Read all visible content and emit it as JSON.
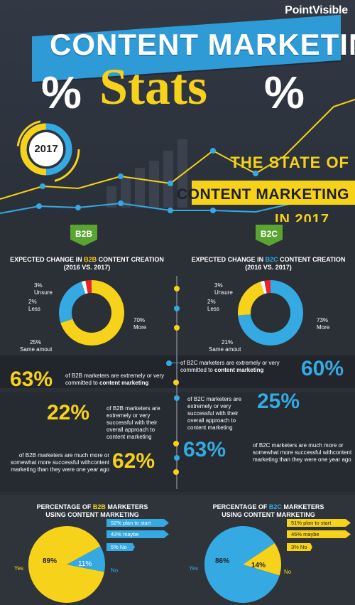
{
  "header": {
    "brand_point": "Point",
    "brand_visible": "Visible",
    "title": "CONTENT MARKETING",
    "subtitle": "Stats",
    "percent_symbol": "%",
    "year": "2017",
    "state_line1": "THE STATE OF",
    "state_line2": "CONTENT MARKETING",
    "state_line3": "IN 2017"
  },
  "b2b": {
    "badge": "B2B",
    "expected_title_pre": "EXPECTED CHANGE IN ",
    "expected_title_accent": "B2B",
    "expected_title_post": " CONTENT CREATION",
    "expected_title_years": "(2016 VS. 2017)",
    "donut": [
      {
        "label": "More",
        "value": 70,
        "pct": "70%",
        "color": "#f7d21a"
      },
      {
        "label": "Same amout",
        "value": 25,
        "pct": "25%",
        "color": "#35a9e1"
      },
      {
        "label": "Less",
        "value": 2,
        "pct": "2%",
        "color": "#ffffff"
      },
      {
        "label": "Unsure",
        "value": 3,
        "pct": "3%",
        "color": "#e8232a"
      }
    ]
  },
  "b2c": {
    "badge": "B2C",
    "expected_title_pre": "EXPECTED CHANGE IN ",
    "expected_title_accent": "B2C",
    "expected_title_post": " CONTENT CREATION",
    "expected_title_years": "(2016 VS. 2017)",
    "donut": [
      {
        "label": "More",
        "value": 73,
        "pct": "73%",
        "color": "#35a9e1"
      },
      {
        "label": "Same amout",
        "value": 21,
        "pct": "21%",
        "color": "#f7d21a"
      },
      {
        "label": "Less",
        "value": 2,
        "pct": "2%",
        "color": "#ffffff"
      },
      {
        "label": "Unsure",
        "value": 3,
        "pct": "3%",
        "color": "#e8232a"
      }
    ]
  },
  "stats": [
    {
      "value": "60%",
      "text_pre": "of B2C marketers are extremely or very committed to ",
      "text_bold": "content marketing",
      "color": "#35a9e1"
    },
    {
      "value": "63%",
      "text_pre": "of B2B marketers are extremely or very committed to ",
      "text_bold": "content marketing",
      "color": "#f7d21a"
    },
    {
      "value": "25%",
      "text": "of B2C marketers are extremely or very successful with their overall approach to content marketing",
      "color": "#35a9e1"
    },
    {
      "value": "22%",
      "text": "of B2B marketers are extremely or very successful with their overall approach to content marketing",
      "color": "#f7d21a"
    },
    {
      "value": "63%",
      "text": "of B2C marketers are much more or somewhat more successful withcontent marketing than they were one year ago",
      "color": "#35a9e1"
    },
    {
      "value": "62%",
      "text": "of B2B marketers are much more or somewhat more successful withcontent marketing than they were one year ago",
      "color": "#f7d21a"
    }
  ],
  "usage_b2b": {
    "title_pre": "PERCENTAGE OF ",
    "title_accent": "B2B",
    "title_post": " MARKETERS",
    "title_line2": "USING CONTENT MARKETING",
    "yes_label": "Yes",
    "no_label": "No",
    "yes_pct": "89%",
    "no_pct": "11%",
    "yes_value": 89,
    "no_value": 11,
    "bars": [
      "52% plan to start",
      "43% maybe",
      "5% No"
    ]
  },
  "usage_b2c": {
    "title_pre": "PERCENTAGE OF ",
    "title_accent": "B2C",
    "title_post": " MARKETERS",
    "title_line2": "USING CONTENT MARKETING",
    "yes_label": "Yes",
    "no_label": "No",
    "yes_pct": "86%",
    "no_pct": "14%",
    "yes_value": 86,
    "no_value": 14,
    "bars": [
      "51% plan to start",
      "46% maybe",
      "3% No"
    ]
  }
}
